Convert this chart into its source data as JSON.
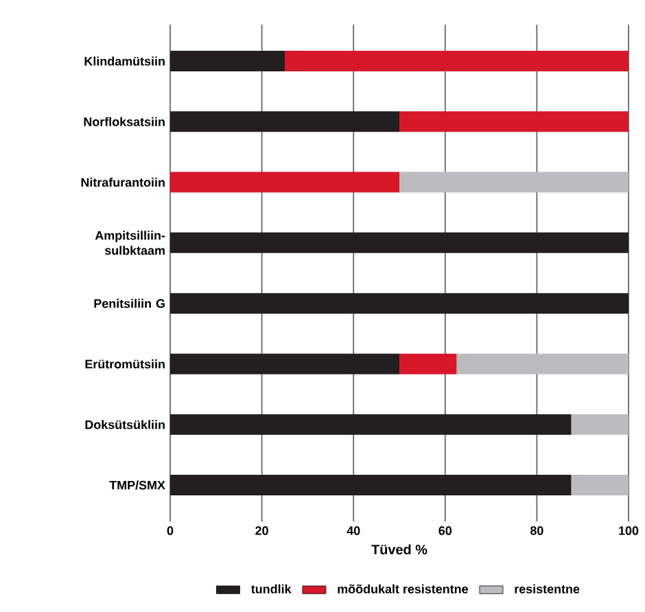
{
  "chart_data": {
    "type": "bar",
    "orientation": "horizontal",
    "stacked": true,
    "xlabel": "Tüved %",
    "categories": [
      "Klindamütsiin",
      "Norfloksatsiin",
      "Nitrafurantoiin",
      "Ampitsilliin-sulbktaam",
      "Penitsiliin G",
      "Erütromütsiin",
      "Doksütsükliin",
      "TMP/SMX"
    ],
    "series": [
      {
        "name": "tundlik",
        "color": "#231f20",
        "values": [
          25,
          50,
          0,
          100,
          100,
          50,
          87.5,
          87.5
        ]
      },
      {
        "name": "mõõdukalt resistentne",
        "color": "#d7182a",
        "values": [
          75,
          50,
          50,
          0,
          0,
          12.5,
          0,
          0
        ]
      },
      {
        "name": "resistentne",
        "color": "#bcbcc0",
        "values": [
          0,
          0,
          50,
          0,
          0,
          37.5,
          12.5,
          12.5
        ]
      }
    ],
    "xlim": [
      0,
      100
    ],
    "xticks": [
      0,
      20,
      40,
      60,
      80,
      100
    ],
    "grid": "x",
    "legend": "bottom"
  }
}
